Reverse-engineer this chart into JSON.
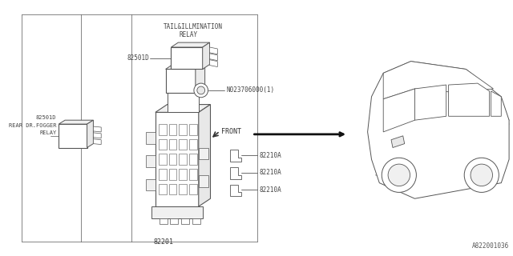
{
  "bg_color": "#ffffff",
  "line_color": "#555555",
  "fig_width": 6.4,
  "fig_height": 3.2,
  "dpi": 100,
  "labels": {
    "tail_relay_line1": "TAIL&ILLMINATION",
    "tail_relay_line2": "RELAY",
    "part1": "82501D",
    "bolt": "N023706000(1)",
    "rear_relay_line1": "82501D",
    "rear_relay_line2": "REAR DR.FOGGER",
    "rear_relay_line3": "RELAY",
    "fuse_box": "82201",
    "fuse1": "82210A",
    "fuse2": "82210A",
    "fuse3": "82210A",
    "front_label": "FRONT",
    "part_num": "A822001036"
  }
}
